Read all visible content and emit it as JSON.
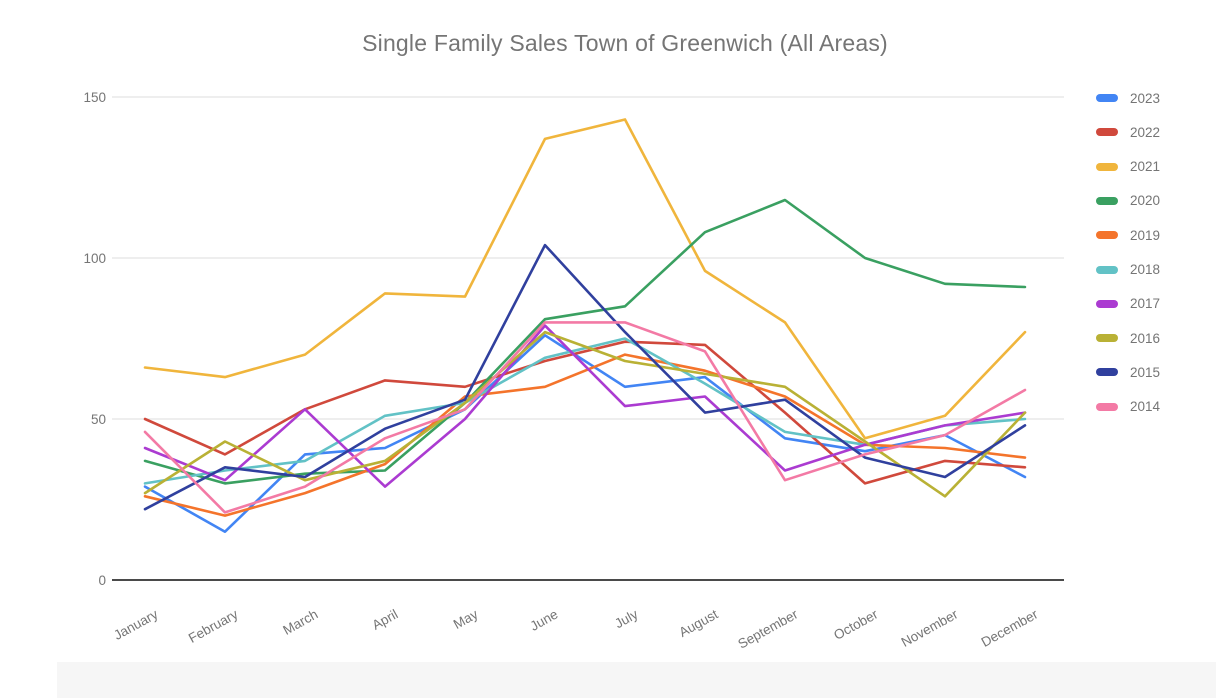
{
  "chart_data": {
    "type": "line",
    "title": "Single Family Sales Town of Greenwich (All Areas)",
    "categories": [
      "January",
      "February",
      "March",
      "April",
      "May",
      "June",
      "July",
      "August",
      "September",
      "October",
      "November",
      "December"
    ],
    "y_ticks": [
      0,
      50,
      100,
      150
    ],
    "ylim": [
      0,
      150
    ],
    "grid": true,
    "legend_position": "right",
    "text_color": "#757575",
    "series": [
      {
        "name": "2023",
        "color": "#4285F4",
        "values": [
          29,
          15,
          39,
          41,
          53,
          76,
          60,
          63,
          44,
          40,
          45,
          32
        ]
      },
      {
        "name": "2022",
        "color": "#D0493C",
        "values": [
          50,
          39,
          53,
          62,
          60,
          68,
          74,
          73,
          52,
          30,
          37,
          35
        ]
      },
      {
        "name": "2021",
        "color": "#F0B53C",
        "values": [
          66,
          63,
          70,
          89,
          88,
          137,
          143,
          96,
          80,
          44,
          51,
          77
        ]
      },
      {
        "name": "2020",
        "color": "#3AA061",
        "values": [
          37,
          30,
          33,
          34,
          55,
          81,
          85,
          108,
          118,
          100,
          92,
          91
        ]
      },
      {
        "name": "2019",
        "color": "#F4742B",
        "values": [
          26,
          20,
          27,
          36,
          57,
          60,
          70,
          65,
          57,
          42,
          41,
          38
        ]
      },
      {
        "name": "2018",
        "color": "#62C2C6",
        "values": [
          30,
          34,
          37,
          51,
          55,
          69,
          75,
          61,
          46,
          42,
          48,
          50
        ]
      },
      {
        "name": "2017",
        "color": "#AB3BD1",
        "values": [
          41,
          31,
          53,
          29,
          50,
          79,
          54,
          57,
          34,
          42,
          48,
          52
        ]
      },
      {
        "name": "2016",
        "color": "#B9B135",
        "values": [
          27,
          43,
          31,
          37,
          55,
          77,
          68,
          64,
          60,
          43,
          26,
          52
        ]
      },
      {
        "name": "2015",
        "color": "#30409E",
        "values": [
          22,
          35,
          32,
          47,
          56,
          104,
          77,
          52,
          56,
          38,
          32,
          48
        ]
      },
      {
        "name": "2014",
        "color": "#F37AA5",
        "values": [
          46,
          21,
          29,
          44,
          53,
          80,
          80,
          71,
          31,
          39,
          45,
          59
        ]
      }
    ]
  }
}
